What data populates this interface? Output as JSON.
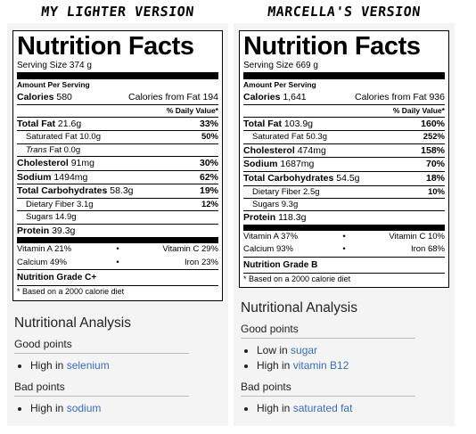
{
  "columns": [
    {
      "heading": "MY LIGHTER VERSION",
      "label": {
        "title": "Nutrition Facts",
        "serving": "Serving Size 374 g",
        "amount_per": "Amount Per Serving",
        "calories_label": "Calories",
        "calories": "580",
        "cal_fat": "Calories from Fat 194",
        "dv_header": "% Daily Value*",
        "rows": [
          {
            "label": "Total Fat",
            "amount": "21.6g",
            "dv": "33%",
            "bold": true,
            "indent": false
          },
          {
            "label": "Saturated Fat",
            "amount": "10.0g",
            "dv": "50%",
            "bold": false,
            "indent": true
          },
          {
            "label": "Trans",
            "label2": "Fat",
            "amount": "0.0g",
            "dv": "",
            "bold": false,
            "indent": true,
            "italic": true
          },
          {
            "label": "Cholesterol",
            "amount": "91mg",
            "dv": "30%",
            "bold": true,
            "indent": false
          },
          {
            "label": "Sodium",
            "amount": "1494mg",
            "dv": "62%",
            "bold": true,
            "indent": false
          },
          {
            "label": "Total Carbohydrates",
            "amount": "58.3g",
            "dv": "19%",
            "bold": true,
            "indent": false
          },
          {
            "label": "Dietary Fiber",
            "amount": "3.1g",
            "dv": "12%",
            "bold": false,
            "indent": true
          },
          {
            "label": "Sugars",
            "amount": "14.9g",
            "dv": "",
            "bold": false,
            "indent": true
          }
        ],
        "protein_label": "Protein",
        "protein": "39.3g",
        "vitamins": [
          {
            "left": "Vitamin A 21%",
            "right": "Vitamin C 29%"
          },
          {
            "left": "Calcium 49%",
            "right": "Iron 23%"
          }
        ],
        "grade": "Nutrition Grade C+",
        "footnote": "* Based on a 2000 calorie diet"
      },
      "analysis": {
        "title": "Nutritional Analysis",
        "good_title": "Good points",
        "good": [
          {
            "pre": "High in",
            "link": "selenium"
          }
        ],
        "bad_title": "Bad points",
        "bad": [
          {
            "pre": "High in",
            "link": "sodium"
          }
        ]
      }
    },
    {
      "heading": "MARCELLA'S VERSION",
      "label": {
        "title": "Nutrition Facts",
        "serving": "Serving Size 669 g",
        "amount_per": "Amount Per Serving",
        "calories_label": "Calories",
        "calories": "1,641",
        "cal_fat": "Calories from Fat 936",
        "dv_header": "% Daily Value*",
        "rows": [
          {
            "label": "Total Fat",
            "amount": "103.9g",
            "dv": "160%",
            "bold": true,
            "indent": false
          },
          {
            "label": "Saturated Fat",
            "amount": "50.3g",
            "dv": "252%",
            "bold": false,
            "indent": true
          },
          {
            "label": "Cholesterol",
            "amount": "474mg",
            "dv": "158%",
            "bold": true,
            "indent": false
          },
          {
            "label": "Sodium",
            "amount": "1687mg",
            "dv": "70%",
            "bold": true,
            "indent": false
          },
          {
            "label": "Total Carbohydrates",
            "amount": "54.5g",
            "dv": "18%",
            "bold": true,
            "indent": false
          },
          {
            "label": "Dietary Fiber",
            "amount": "2.5g",
            "dv": "10%",
            "bold": false,
            "indent": true
          },
          {
            "label": "Sugars",
            "amount": "9.3g",
            "dv": "",
            "bold": false,
            "indent": true
          }
        ],
        "protein_label": "Protein",
        "protein": "118.3g",
        "vitamins": [
          {
            "left": "Vitamin A 37%",
            "right": "Vitamin C 10%"
          },
          {
            "left": "Calcium 93%",
            "right": "Iron 68%"
          }
        ],
        "grade": "Nutrition Grade B",
        "footnote": "* Based on a 2000 calorie diet"
      },
      "analysis": {
        "title": "Nutritional Analysis",
        "good_title": "Good points",
        "good": [
          {
            "pre": "Low in",
            "link": "sugar"
          },
          {
            "pre": "High in",
            "link": "vitamin B12"
          }
        ],
        "bad_title": "Bad points",
        "bad": [
          {
            "pre": "High in",
            "link": "saturated fat"
          }
        ]
      }
    }
  ],
  "link_color": "#3a6db5"
}
